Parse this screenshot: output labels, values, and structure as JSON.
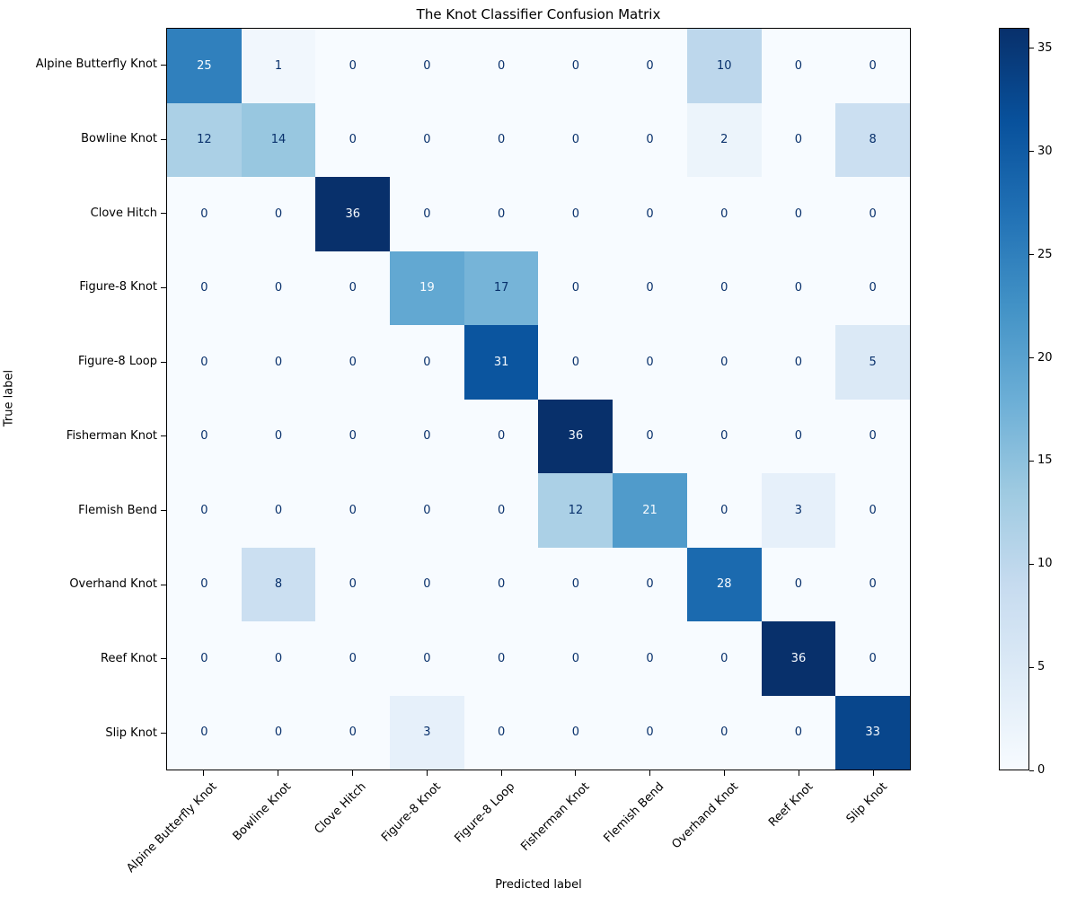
{
  "chart_data": {
    "type": "heatmap",
    "title": "The Knot Classifier Confusion Matrix",
    "xlabel": "Predicted label",
    "ylabel": "True label",
    "categories": [
      "Alpine Butterfly Knot",
      "Bowline Knot",
      "Clove Hitch",
      "Figure-8 Knot",
      "Figure-8 Loop",
      "Fisherman Knot",
      "Flemish Bend",
      "Overhand Knot",
      "Reef Knot",
      "Slip Knot"
    ],
    "matrix": [
      [
        25,
        1,
        0,
        0,
        0,
        0,
        0,
        10,
        0,
        0
      ],
      [
        12,
        14,
        0,
        0,
        0,
        0,
        0,
        2,
        0,
        8
      ],
      [
        0,
        0,
        36,
        0,
        0,
        0,
        0,
        0,
        0,
        0
      ],
      [
        0,
        0,
        0,
        19,
        17,
        0,
        0,
        0,
        0,
        0
      ],
      [
        0,
        0,
        0,
        0,
        31,
        0,
        0,
        0,
        0,
        5
      ],
      [
        0,
        0,
        0,
        0,
        0,
        36,
        0,
        0,
        0,
        0
      ],
      [
        0,
        0,
        0,
        0,
        0,
        12,
        21,
        0,
        3,
        0
      ],
      [
        0,
        8,
        0,
        0,
        0,
        0,
        0,
        28,
        0,
        0
      ],
      [
        0,
        0,
        0,
        0,
        0,
        0,
        0,
        0,
        36,
        0
      ],
      [
        0,
        0,
        0,
        3,
        0,
        0,
        0,
        0,
        0,
        33
      ]
    ],
    "vmin": 0,
    "vmax": 36,
    "colormap": "Blues",
    "colorbar_ticks": [
      0,
      5,
      10,
      15,
      20,
      25,
      30,
      35
    ],
    "legend_position": "right-colorbar",
    "grid": false
  },
  "colors": {
    "colormap_stops": [
      "#f7fbff",
      "#deebf7",
      "#c6dbef",
      "#9ecae1",
      "#6baed6",
      "#4292c6",
      "#2171b5",
      "#08519c",
      "#08306b"
    ],
    "text_light": "#f7fbff",
    "text_dark": "#08306b",
    "axis": "#000000",
    "background": "#ffffff"
  }
}
